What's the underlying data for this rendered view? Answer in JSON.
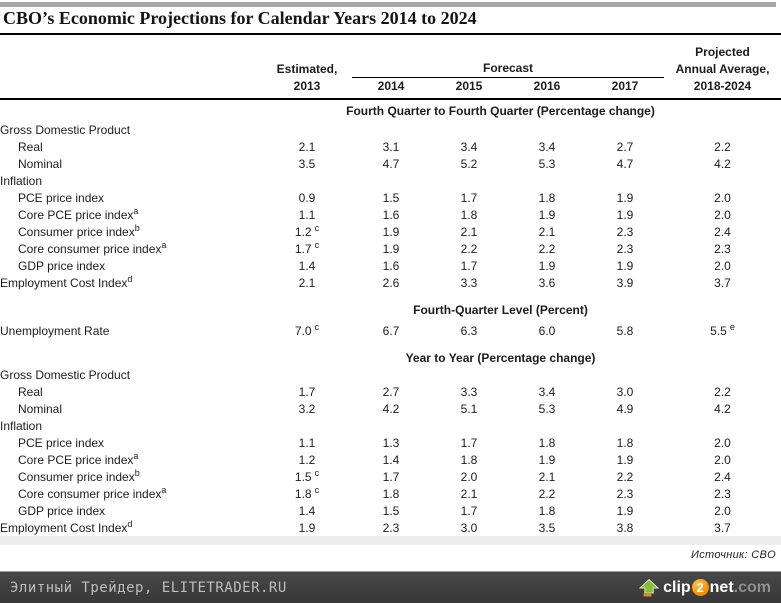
{
  "title": "CBO’s Economic Projections for Calendar Years 2014 to 2024",
  "header": {
    "estimated_line1": "Estimated,",
    "estimated_line2": "2013",
    "forecast_label": "Forecast",
    "years": [
      "2014",
      "2015",
      "2016",
      "2017"
    ],
    "projected_line1": "Projected",
    "projected_line2": "Annual Average,",
    "projected_line3": "2018-2024"
  },
  "chart_data": {
    "type": "table",
    "title": "CBO's Economic Projections for Calendar Years 2014 to 2024",
    "columns": [
      "Estimated, 2013",
      "2014",
      "2015",
      "2016",
      "2017",
      "Projected Annual Average, 2018-2024"
    ],
    "sections": [
      {
        "heading": "Fourth Quarter to Fourth Quarter (Percentage change)",
        "rows": [
          {
            "label": "Gross Domestic Product",
            "indent": false,
            "values": [
              "",
              "",
              "",
              "",
              "",
              ""
            ]
          },
          {
            "label": "Real",
            "indent": true,
            "values": [
              "2.1",
              "3.1",
              "3.4",
              "3.4",
              "2.7",
              "2.2"
            ]
          },
          {
            "label": "Nominal",
            "indent": true,
            "values": [
              "3.5",
              "4.7",
              "5.2",
              "5.3",
              "4.7",
              "4.2"
            ]
          },
          {
            "label": "Inflation",
            "indent": false,
            "values": [
              "",
              "",
              "",
              "",
              "",
              ""
            ]
          },
          {
            "label": "PCE price index",
            "indent": true,
            "values": [
              "0.9",
              "1.5",
              "1.7",
              "1.8",
              "1.9",
              "2.0"
            ]
          },
          {
            "label": "Core PCE price index^a",
            "indent": true,
            "values": [
              "1.1",
              "1.6",
              "1.8",
              "1.9",
              "1.9",
              "2.0"
            ]
          },
          {
            "label": "Consumer price index^b",
            "indent": true,
            "values": [
              "1.2^c",
              "1.9",
              "2.1",
              "2.1",
              "2.3",
              "2.4"
            ]
          },
          {
            "label": "Core consumer price index^a",
            "indent": true,
            "values": [
              "1.7^c",
              "1.9",
              "2.2",
              "2.2",
              "2.3",
              "2.3"
            ]
          },
          {
            "label": "GDP price index",
            "indent": true,
            "values": [
              "1.4",
              "1.6",
              "1.7",
              "1.9",
              "1.9",
              "2.0"
            ]
          },
          {
            "label": "Employment Cost Index^d",
            "indent": false,
            "values": [
              "2.1",
              "2.6",
              "3.3",
              "3.6",
              "3.9",
              "3.7"
            ]
          }
        ]
      },
      {
        "heading": "Fourth-Quarter Level (Percent)",
        "rows": [
          {
            "label": "Unemployment Rate",
            "indent": false,
            "values": [
              "7.0^c",
              "6.7",
              "6.3",
              "6.0",
              "5.8",
              "5.5^e"
            ]
          }
        ]
      },
      {
        "heading": "Year to Year (Percentage change)",
        "rows": [
          {
            "label": "Gross Domestic Product",
            "indent": false,
            "values": [
              "",
              "",
              "",
              "",
              "",
              ""
            ]
          },
          {
            "label": "Real",
            "indent": true,
            "values": [
              "1.7",
              "2.7",
              "3.3",
              "3.4",
              "3.0",
              "2.2"
            ]
          },
          {
            "label": "Nominal",
            "indent": true,
            "values": [
              "3.2",
              "4.2",
              "5.1",
              "5.3",
              "4.9",
              "4.2"
            ]
          },
          {
            "label": "Inflation",
            "indent": false,
            "values": [
              "",
              "",
              "",
              "",
              "",
              ""
            ]
          },
          {
            "label": "PCE price index",
            "indent": true,
            "values": [
              "1.1",
              "1.3",
              "1.7",
              "1.8",
              "1.8",
              "2.0"
            ]
          },
          {
            "label": "Core PCE price index^a",
            "indent": true,
            "values": [
              "1.2",
              "1.4",
              "1.8",
              "1.9",
              "1.9",
              "2.0"
            ]
          },
          {
            "label": "Consumer price index^b",
            "indent": true,
            "values": [
              "1.5^c",
              "1.7",
              "2.0",
              "2.1",
              "2.2",
              "2.4"
            ]
          },
          {
            "label": "Core consumer price index^a",
            "indent": true,
            "values": [
              "1.8^c",
              "1.8",
              "2.1",
              "2.2",
              "2.3",
              "2.3"
            ]
          },
          {
            "label": "GDP price index",
            "indent": true,
            "values": [
              "1.4",
              "1.5",
              "1.7",
              "1.8",
              "1.9",
              "2.0"
            ]
          },
          {
            "label": "Employment Cost Index^d",
            "indent": false,
            "values": [
              "1.9",
              "2.3",
              "3.0",
              "3.5",
              "3.8",
              "3.7"
            ]
          }
        ]
      }
    ]
  },
  "source": "Источник: CBO",
  "footer": {
    "site": "Элитный Трейдер, ELITETRADER.RU",
    "logo": {
      "clip": "clip",
      "num": "2",
      "net": "net",
      "tld": ".com"
    }
  }
}
